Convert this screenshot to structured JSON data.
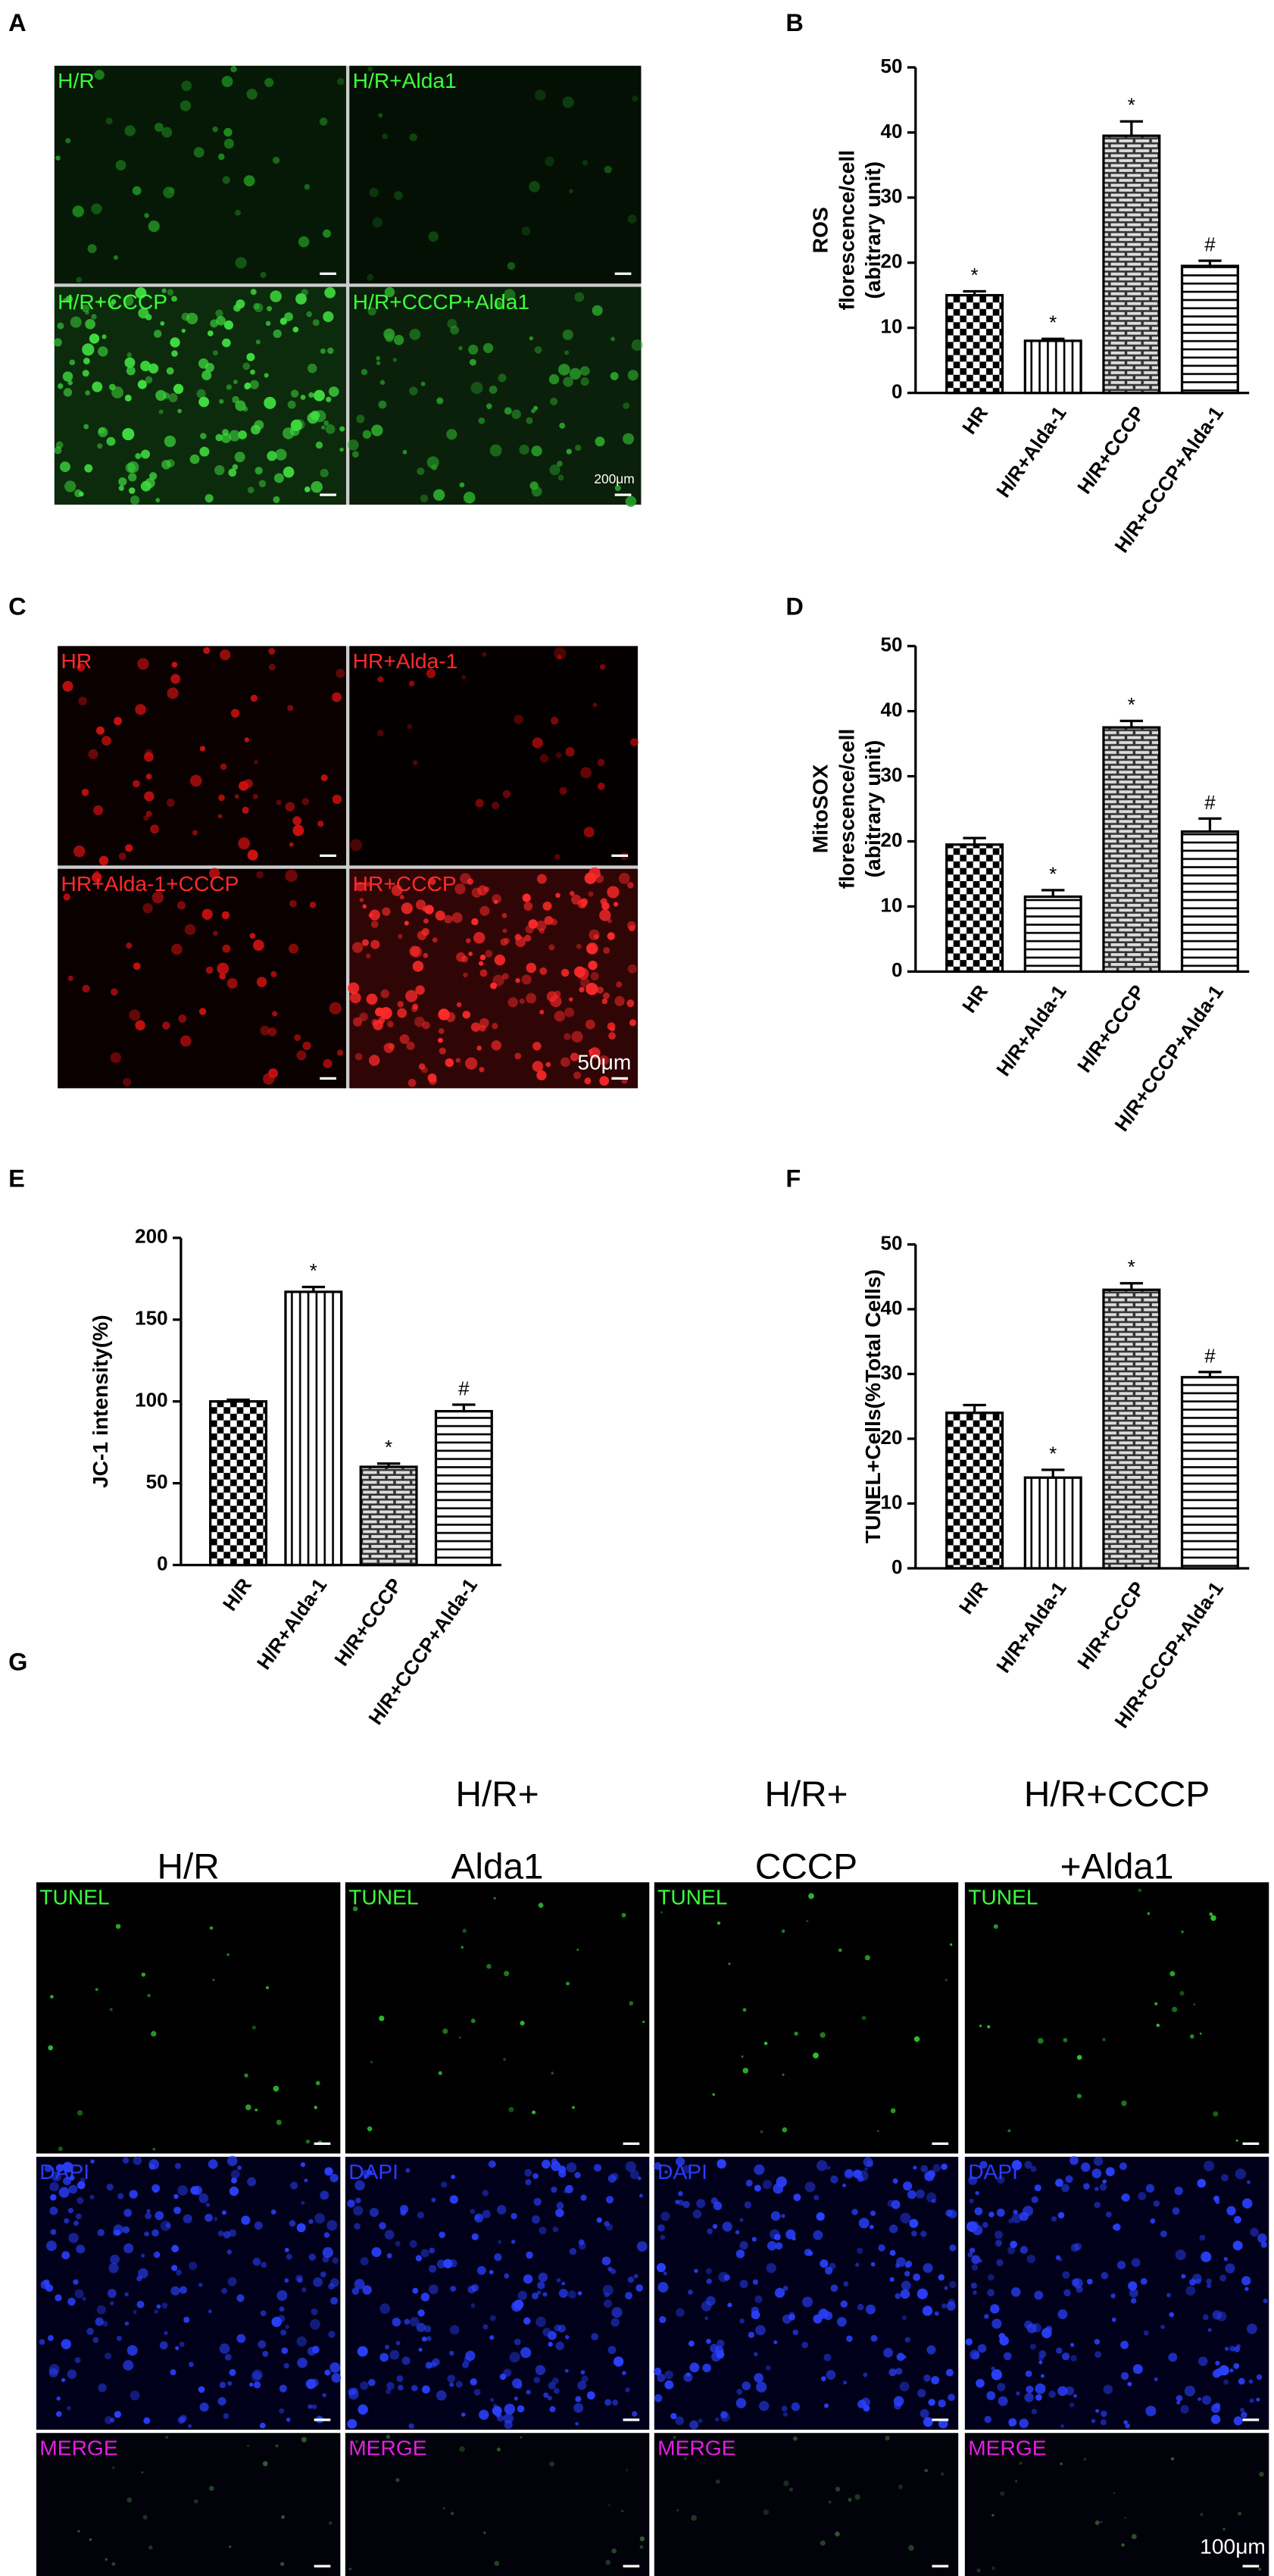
{
  "micrographs": [
    {
      "panel": "A",
      "labels": [
        "H/R",
        "H/R+Alda1",
        "H/R+CCCP",
        "H/R+CCCP+Alda1"
      ],
      "scale_bar": "200μm"
    },
    {
      "panel": "C",
      "labels": [
        "HR",
        "HR+Alda-1",
        "HR+Alda-1+CCCP",
        "HR+CCCP"
      ],
      "scale_bar": "50μm"
    },
    {
      "panel": "G",
      "columns": [
        [
          "H/R"
        ],
        [
          "H/R+",
          "Alda1"
        ],
        [
          "H/R+",
          "CCCP"
        ],
        [
          "H/R+CCCP",
          "+Alda1"
        ]
      ],
      "rows": [
        "TUNEL",
        "DAPI",
        "MERGE"
      ],
      "scale_bar": "100μm"
    }
  ],
  "chart_data": [
    {
      "type": "bar",
      "panel": "B",
      "ylabel": [
        "ROS",
        "florescence/cell",
        "(abitrary unit)"
      ],
      "categories": [
        "HR",
        "H/R+Alda-1",
        "H/R+CCCP",
        "H/R+CCCP+Alda-1"
      ],
      "values": [
        15,
        8,
        39.5,
        19.5
      ],
      "errors": [
        0.6,
        0.3,
        2.2,
        0.8
      ],
      "annotations": [
        "*",
        "*",
        "*",
        "#"
      ],
      "patterns": [
        "checker",
        "vertical",
        "brick",
        "horizontal"
      ],
      "ylim": [
        0,
        50
      ],
      "yticks": [
        0,
        10,
        20,
        30,
        40,
        50
      ]
    },
    {
      "type": "bar",
      "panel": "D",
      "ylabel": [
        "MitoSOX",
        "florescence/cell",
        "(abitrary unit)"
      ],
      "categories": [
        "HR",
        "H/R+Alda-1",
        "H/R+CCCP",
        "H/R+CCCP+Alda-1"
      ],
      "values": [
        19.5,
        11.5,
        37.5,
        21.5
      ],
      "errors": [
        1,
        1,
        1,
        2
      ],
      "annotations": [
        null,
        "*",
        "*",
        "#"
      ],
      "patterns": [
        "checker",
        "horizontal",
        "brick",
        "horizontal"
      ],
      "ylim": [
        0,
        50
      ],
      "yticks": [
        0,
        10,
        20,
        30,
        40,
        50
      ]
    },
    {
      "type": "bar",
      "panel": "E",
      "ylabel": [
        "JC-1 intensity(%)"
      ],
      "categories": [
        "H/R",
        "H/R+Alda-1",
        "H/R+CCCP",
        "H/R+CCCP+Alda-1"
      ],
      "values": [
        100,
        167,
        60,
        94
      ],
      "errors": [
        1,
        3,
        2,
        4
      ],
      "annotations": [
        null,
        "*",
        "*",
        "#"
      ],
      "patterns": [
        "checker",
        "vertical",
        "brick",
        "horizontal"
      ],
      "ylim": [
        0,
        200
      ],
      "yticks": [
        0,
        50,
        100,
        150,
        200
      ]
    },
    {
      "type": "bar",
      "panel": "F",
      "ylabel": [
        "TUNEL+Cells(%Total Cells)"
      ],
      "categories": [
        "H/R",
        "H/R+Alda-1",
        "H/R+CCCP",
        "H/R+CCCP+Alda-1"
      ],
      "values": [
        24,
        14,
        43,
        29.5
      ],
      "errors": [
        1.2,
        1.2,
        1,
        0.8
      ],
      "annotations": [
        null,
        "*",
        "*",
        "#"
      ],
      "patterns": [
        "checker",
        "vertical",
        "brick",
        "horizontal"
      ],
      "ylim": [
        0,
        50
      ],
      "yticks": [
        0,
        10,
        20,
        30,
        40,
        50
      ]
    }
  ]
}
